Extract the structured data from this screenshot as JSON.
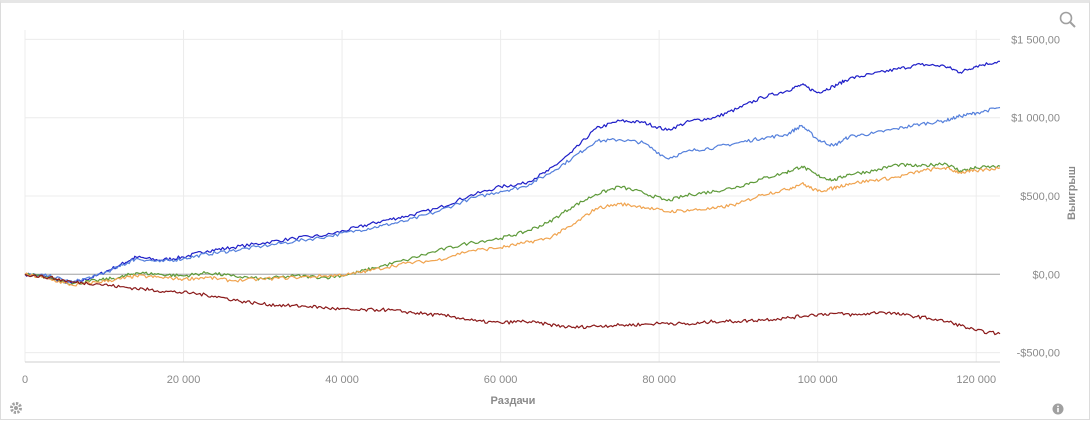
{
  "chart_data": {
    "type": "line",
    "xlabel": "Раздачи",
    "ylabel": "Выигрыш",
    "xlim": [
      0,
      123000
    ],
    "ylim": [
      -560,
      1560
    ],
    "x_ticks": [
      0,
      20000,
      40000,
      60000,
      80000,
      100000,
      120000
    ],
    "x_tick_labels": [
      "0",
      "20 000",
      "40 000",
      "60 000",
      "80 000",
      "100 000",
      "120 000"
    ],
    "y_ticks": [
      -500,
      0,
      500,
      1000,
      1500
    ],
    "y_tick_labels": [
      "-$500,00",
      "$0,00",
      "$500,00",
      "$1 000,00",
      "$1 500,00"
    ],
    "grid": true,
    "legend": "none",
    "series": [
      {
        "color": "#1f1fc8",
        "points": [
          [
            0,
            0
          ],
          [
            3000,
            -20
          ],
          [
            6000,
            -60
          ],
          [
            9000,
            -10
          ],
          [
            12000,
            60
          ],
          [
            14000,
            110
          ],
          [
            17000,
            90
          ],
          [
            20000,
            110
          ],
          [
            23000,
            150
          ],
          [
            26000,
            170
          ],
          [
            30000,
            200
          ],
          [
            34000,
            230
          ],
          [
            38000,
            250
          ],
          [
            42000,
            300
          ],
          [
            45000,
            340
          ],
          [
            48000,
            370
          ],
          [
            52000,
            420
          ],
          [
            56000,
            500
          ],
          [
            60000,
            560
          ],
          [
            63000,
            580
          ],
          [
            66000,
            660
          ],
          [
            69000,
            780
          ],
          [
            72000,
            930
          ],
          [
            75000,
            980
          ],
          [
            78000,
            970
          ],
          [
            81000,
            920
          ],
          [
            84000,
            980
          ],
          [
            87000,
            1000
          ],
          [
            90000,
            1060
          ],
          [
            93000,
            1130
          ],
          [
            96000,
            1170
          ],
          [
            98000,
            1210
          ],
          [
            100000,
            1160
          ],
          [
            102000,
            1200
          ],
          [
            104000,
            1250
          ],
          [
            107000,
            1280
          ],
          [
            110000,
            1310
          ],
          [
            113000,
            1340
          ],
          [
            116000,
            1330
          ],
          [
            118000,
            1290
          ],
          [
            120000,
            1330
          ],
          [
            123000,
            1360
          ]
        ]
      },
      {
        "color": "#5580dc",
        "points": [
          [
            0,
            0
          ],
          [
            3000,
            -10
          ],
          [
            6000,
            -50
          ],
          [
            9000,
            -10
          ],
          [
            12000,
            50
          ],
          [
            14000,
            100
          ],
          [
            17000,
            80
          ],
          [
            20000,
            100
          ],
          [
            23000,
            130
          ],
          [
            26000,
            150
          ],
          [
            30000,
            180
          ],
          [
            34000,
            210
          ],
          [
            38000,
            240
          ],
          [
            42000,
            280
          ],
          [
            45000,
            310
          ],
          [
            48000,
            340
          ],
          [
            52000,
            400
          ],
          [
            56000,
            480
          ],
          [
            60000,
            530
          ],
          [
            63000,
            560
          ],
          [
            66000,
            640
          ],
          [
            69000,
            740
          ],
          [
            72000,
            850
          ],
          [
            75000,
            860
          ],
          [
            78000,
            840
          ],
          [
            81000,
            740
          ],
          [
            84000,
            790
          ],
          [
            87000,
            810
          ],
          [
            90000,
            840
          ],
          [
            93000,
            870
          ],
          [
            96000,
            890
          ],
          [
            98000,
            950
          ],
          [
            100000,
            860
          ],
          [
            102000,
            820
          ],
          [
            104000,
            880
          ],
          [
            107000,
            900
          ],
          [
            110000,
            930
          ],
          [
            113000,
            960
          ],
          [
            116000,
            980
          ],
          [
            118000,
            1010
          ],
          [
            120000,
            1030
          ],
          [
            123000,
            1065
          ]
        ]
      },
      {
        "color": "#5e9a3a",
        "points": [
          [
            0,
            0
          ],
          [
            3000,
            -20
          ],
          [
            6000,
            -60
          ],
          [
            9000,
            -40
          ],
          [
            12000,
            -20
          ],
          [
            14000,
            10
          ],
          [
            17000,
            0
          ],
          [
            20000,
            -10
          ],
          [
            23000,
            10
          ],
          [
            26000,
            -10
          ],
          [
            30000,
            -30
          ],
          [
            34000,
            -10
          ],
          [
            38000,
            -20
          ],
          [
            41000,
            0
          ],
          [
            44000,
            40
          ],
          [
            48000,
            90
          ],
          [
            52000,
            150
          ],
          [
            56000,
            200
          ],
          [
            60000,
            230
          ],
          [
            63000,
            270
          ],
          [
            66000,
            330
          ],
          [
            69000,
            430
          ],
          [
            72000,
            510
          ],
          [
            75000,
            560
          ],
          [
            78000,
            520
          ],
          [
            81000,
            470
          ],
          [
            84000,
            510
          ],
          [
            87000,
            530
          ],
          [
            90000,
            560
          ],
          [
            93000,
            610
          ],
          [
            96000,
            650
          ],
          [
            98000,
            690
          ],
          [
            100000,
            630
          ],
          [
            102000,
            600
          ],
          [
            104000,
            640
          ],
          [
            107000,
            660
          ],
          [
            110000,
            700
          ],
          [
            113000,
            690
          ],
          [
            116000,
            710
          ],
          [
            118000,
            660
          ],
          [
            120000,
            680
          ],
          [
            123000,
            690
          ]
        ]
      },
      {
        "color": "#f0a450",
        "points": [
          [
            0,
            0
          ],
          [
            3000,
            -30
          ],
          [
            6000,
            -70
          ],
          [
            9000,
            -50
          ],
          [
            12000,
            -30
          ],
          [
            14000,
            -10
          ],
          [
            17000,
            -20
          ],
          [
            20000,
            -30
          ],
          [
            23000,
            -20
          ],
          [
            26000,
            -40
          ],
          [
            30000,
            -30
          ],
          [
            34000,
            -20
          ],
          [
            38000,
            -10
          ],
          [
            41000,
            0
          ],
          [
            44000,
            30
          ],
          [
            48000,
            70
          ],
          [
            52000,
            90
          ],
          [
            56000,
            150
          ],
          [
            60000,
            170
          ],
          [
            63000,
            200
          ],
          [
            66000,
            230
          ],
          [
            69000,
            310
          ],
          [
            72000,
            420
          ],
          [
            75000,
            450
          ],
          [
            78000,
            430
          ],
          [
            81000,
            400
          ],
          [
            84000,
            410
          ],
          [
            87000,
            420
          ],
          [
            90000,
            450
          ],
          [
            93000,
            510
          ],
          [
            96000,
            540
          ],
          [
            98000,
            580
          ],
          [
            100000,
            530
          ],
          [
            102000,
            550
          ],
          [
            104000,
            580
          ],
          [
            107000,
            600
          ],
          [
            110000,
            620
          ],
          [
            113000,
            660
          ],
          [
            116000,
            680
          ],
          [
            118000,
            650
          ],
          [
            120000,
            660
          ],
          [
            123000,
            680
          ]
        ]
      },
      {
        "color": "#8b1a1a",
        "points": [
          [
            0,
            0
          ],
          [
            3000,
            -20
          ],
          [
            6000,
            -50
          ],
          [
            9000,
            -60
          ],
          [
            12000,
            -80
          ],
          [
            15000,
            -95
          ],
          [
            18000,
            -110
          ],
          [
            21000,
            -120
          ],
          [
            24000,
            -140
          ],
          [
            27000,
            -170
          ],
          [
            30000,
            -190
          ],
          [
            33000,
            -200
          ],
          [
            36000,
            -205
          ],
          [
            39000,
            -220
          ],
          [
            42000,
            -230
          ],
          [
            45000,
            -225
          ],
          [
            48000,
            -240
          ],
          [
            51000,
            -255
          ],
          [
            54000,
            -270
          ],
          [
            57000,
            -300
          ],
          [
            60000,
            -310
          ],
          [
            63000,
            -300
          ],
          [
            66000,
            -320
          ],
          [
            69000,
            -340
          ],
          [
            72000,
            -330
          ],
          [
            75000,
            -325
          ],
          [
            78000,
            -320
          ],
          [
            81000,
            -310
          ],
          [
            84000,
            -320
          ],
          [
            87000,
            -300
          ],
          [
            90000,
            -300
          ],
          [
            93000,
            -290
          ],
          [
            96000,
            -280
          ],
          [
            99000,
            -260
          ],
          [
            102000,
            -250
          ],
          [
            105000,
            -260
          ],
          [
            108000,
            -240
          ],
          [
            111000,
            -260
          ],
          [
            114000,
            -280
          ],
          [
            117000,
            -310
          ],
          [
            120000,
            -360
          ],
          [
            123000,
            -380
          ]
        ]
      }
    ]
  },
  "icons": {
    "zoom": "zoom-icon",
    "settings": "gear-icon",
    "info": "info-icon"
  }
}
